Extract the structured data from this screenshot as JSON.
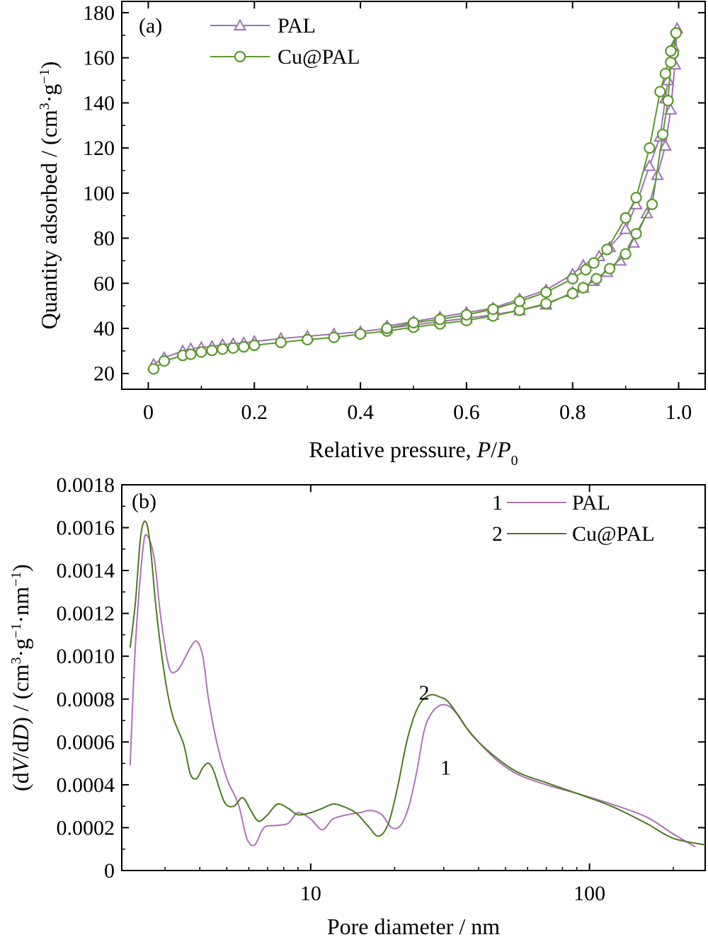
{
  "chart_data": [
    {
      "type": "line",
      "panel_label": "(a)",
      "xlabel_parts": [
        "Relative pressure, ",
        "P",
        "/",
        "P",
        "0"
      ],
      "ylabel_parts": [
        "Quantity adsorbed / (cm",
        "3",
        "·g",
        "−1",
        ")"
      ],
      "xlim": [
        -0.05,
        1.05
      ],
      "ylim": [
        13,
        185
      ],
      "xticks": [
        0.0,
        0.2,
        0.4,
        0.6,
        0.8,
        1.0
      ],
      "xtick_labels": [
        "0",
        "0.2",
        "0.4",
        "0.6",
        "0.8",
        "1.0"
      ],
      "yticks": [
        20,
        40,
        60,
        80,
        100,
        120,
        140,
        160,
        180
      ],
      "ytick_labels": [
        "20",
        "40",
        "60",
        "80",
        "100",
        "120",
        "140",
        "160",
        "180"
      ],
      "legend_position": "top-left",
      "series": [
        {
          "name": "PAL",
          "color": "#a070b8",
          "marker": "triangle",
          "x": [
            0.01,
            0.03,
            0.065,
            0.08,
            0.1,
            0.12,
            0.14,
            0.16,
            0.18,
            0.2,
            0.25,
            0.3,
            0.35,
            0.4,
            0.45,
            0.5,
            0.55,
            0.6,
            0.65,
            0.7,
            0.75,
            0.8,
            0.82,
            0.84,
            0.865,
            0.89,
            0.915,
            0.94,
            0.96,
            0.975,
            0.985,
            0.993,
            0.997,
            0.99,
            0.98,
            0.975,
            0.965,
            0.945,
            0.92,
            0.9,
            0.87,
            0.85,
            0.82,
            0.8,
            0.75,
            0.7,
            0.65,
            0.6,
            0.55,
            0.5,
            0.45
          ],
          "y": [
            24,
            27,
            30,
            31,
            31.5,
            32,
            32.8,
            33.2,
            33.6,
            34.2,
            35.5,
            36.5,
            37.5,
            38.5,
            40,
            41.5,
            43,
            44.5,
            46,
            48,
            50.5,
            56,
            58,
            61,
            65,
            70,
            78,
            91,
            108,
            121,
            137,
            157,
            173,
            165,
            150,
            142,
            125,
            112,
            95,
            84,
            76,
            72,
            68,
            64,
            57,
            53,
            49,
            47,
            45,
            43,
            41
          ]
        },
        {
          "name": "Cu@PAL",
          "color": "#5a9a2a",
          "marker": "circle",
          "x": [
            0.01,
            0.03,
            0.065,
            0.08,
            0.1,
            0.12,
            0.14,
            0.16,
            0.18,
            0.2,
            0.25,
            0.3,
            0.35,
            0.4,
            0.45,
            0.5,
            0.55,
            0.6,
            0.65,
            0.7,
            0.75,
            0.8,
            0.82,
            0.845,
            0.87,
            0.9,
            0.92,
            0.95,
            0.97,
            0.98,
            0.985,
            0.99,
            0.995,
            0.985,
            0.975,
            0.965,
            0.945,
            0.92,
            0.9,
            0.865,
            0.84,
            0.825,
            0.8,
            0.75,
            0.7,
            0.65,
            0.6,
            0.55,
            0.5,
            0.45
          ],
          "y": [
            22,
            25.5,
            28,
            28.5,
            29.5,
            30.2,
            30.8,
            31.3,
            31.8,
            32.5,
            33.8,
            35,
            36,
            37.5,
            38.8,
            40.5,
            42,
            43.5,
            45.5,
            48,
            51,
            55.5,
            58,
            62,
            66.5,
            73,
            82,
            95,
            126,
            141,
            158,
            162,
            171,
            163,
            153,
            145,
            120,
            98,
            89,
            75,
            69,
            66,
            62,
            56,
            52,
            48.5,
            46,
            44,
            42.5,
            40
          ]
        }
      ]
    },
    {
      "type": "line",
      "panel_label": "(b)",
      "xlabel": "Pore diameter / nm",
      "ylabel_parts": [
        "(d",
        "V",
        "/d",
        "D",
        ") / (cm",
        "3",
        "·g",
        "−1",
        "·nm",
        "−1",
        ")"
      ],
      "xscale": "log",
      "xlim": [
        2.1,
        260
      ],
      "ylim": [
        0,
        0.0018
      ],
      "xticks": [
        10,
        100
      ],
      "xtick_labels": [
        "10",
        "100"
      ],
      "yticks": [
        0,
        0.0002,
        0.0004,
        0.0006,
        0.0008,
        0.001,
        0.0012,
        0.0014,
        0.0016,
        0.0018
      ],
      "ytick_labels": [
        "0",
        "0.0002",
        "0.0004",
        "0.0006",
        "0.0008",
        "0.0010",
        "0.0012",
        "0.0014",
        "0.0016",
        "0.0018"
      ],
      "legend_position": "top-right",
      "annotations": [
        {
          "text": "2",
          "x": 25.5,
          "y": 0.00083
        },
        {
          "text": "1",
          "x": 30.5,
          "y": 0.00048
        }
      ],
      "series": [
        {
          "name": "PAL",
          "legend_number": "1",
          "color": "#b070b8",
          "x": [
            2.25,
            2.35,
            2.5,
            2.6,
            2.75,
            2.9,
            3.1,
            3.3,
            3.5,
            3.7,
            3.9,
            4.1,
            4.3,
            4.6,
            5.0,
            5.5,
            5.9,
            6.3,
            6.8,
            7.5,
            8.3,
            9.0,
            10.0,
            11.0,
            12.0,
            13.5,
            15.0,
            16.5,
            18.0,
            19.5,
            21.0,
            22.5,
            24.0,
            25.5,
            27.0,
            29.0,
            31.0,
            33.0,
            36.0,
            40.0,
            46.0,
            55.0,
            70.0,
            90.0,
            120.0,
            160.0,
            200.0,
            240.0
          ],
          "y": [
            0.00049,
            0.00105,
            0.0015,
            0.00156,
            0.00145,
            0.00118,
            0.00095,
            0.00093,
            0.00098,
            0.00104,
            0.00107,
            0.001,
            0.0008,
            0.0006,
            0.00043,
            0.00031,
            0.00015,
            0.00012,
            0.0002,
            0.00021,
            0.00022,
            0.00027,
            0.00024,
            0.00019,
            0.00024,
            0.00026,
            0.00027,
            0.00028,
            0.00026,
            0.0002,
            0.00021,
            0.0003,
            0.00046,
            0.00065,
            0.00073,
            0.00077,
            0.00077,
            0.00074,
            0.00067,
            0.0006,
            0.00052,
            0.00045,
            0.0004,
            0.00036,
            0.00031,
            0.00025,
            0.00017,
            0.00011
          ]
        },
        {
          "name": "Cu@PAL",
          "legend_number": "2",
          "color": "#4a7a1e",
          "x": [
            2.25,
            2.35,
            2.45,
            2.55,
            2.65,
            2.8,
            3.0,
            3.2,
            3.5,
            3.7,
            3.9,
            4.1,
            4.3,
            4.5,
            4.9,
            5.3,
            5.7,
            6.1,
            6.5,
            7.0,
            7.6,
            8.3,
            9.0,
            10.0,
            11.0,
            12.0,
            13.0,
            14.5,
            16.0,
            17.5,
            19.0,
            20.5,
            22.0,
            23.5,
            25.0,
            27.0,
            29.0,
            31.0,
            34.0,
            38.0,
            45.0,
            55.0,
            70.0,
            90.0,
            120.0,
            160.0,
            200.0,
            260.0
          ],
          "y": [
            0.00104,
            0.00125,
            0.00155,
            0.00163,
            0.00153,
            0.0012,
            0.0009,
            0.00072,
            0.00059,
            0.00045,
            0.00043,
            0.00048,
            0.0005,
            0.00046,
            0.00032,
            0.0003,
            0.00034,
            0.00028,
            0.00023,
            0.00026,
            0.00031,
            0.00029,
            0.00026,
            0.00027,
            0.00029,
            0.00031,
            0.0003,
            0.00027,
            0.00021,
            0.00016,
            0.00022,
            0.00039,
            0.00059,
            0.00072,
            0.00079,
            0.00082,
            0.00081,
            0.00079,
            0.00072,
            0.00063,
            0.00054,
            0.00046,
            0.00041,
            0.00036,
            0.0003,
            0.00022,
            0.00015,
            0.00012
          ]
        }
      ]
    }
  ]
}
